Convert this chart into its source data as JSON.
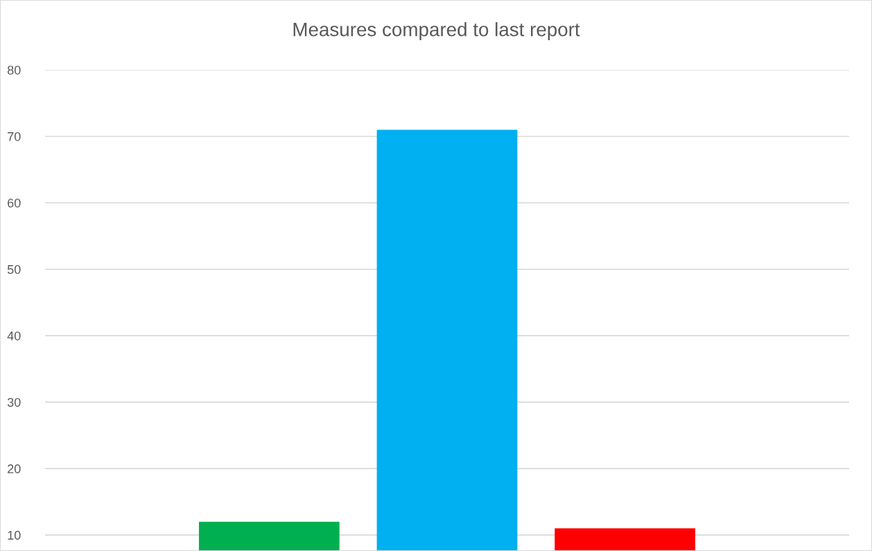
{
  "chart_data": {
    "type": "bar",
    "title": "Measures compared to last report",
    "categories": [
      null,
      null,
      null
    ],
    "values": [
      12,
      71,
      11
    ],
    "colors": [
      "#00b050",
      "#00b0f0",
      "#ff0000"
    ],
    "ylim": [
      7.7,
      80
    ],
    "yticks": [
      10,
      20,
      30,
      40,
      50,
      60,
      70,
      80
    ],
    "grid": "y",
    "tick_labels": "y"
  }
}
